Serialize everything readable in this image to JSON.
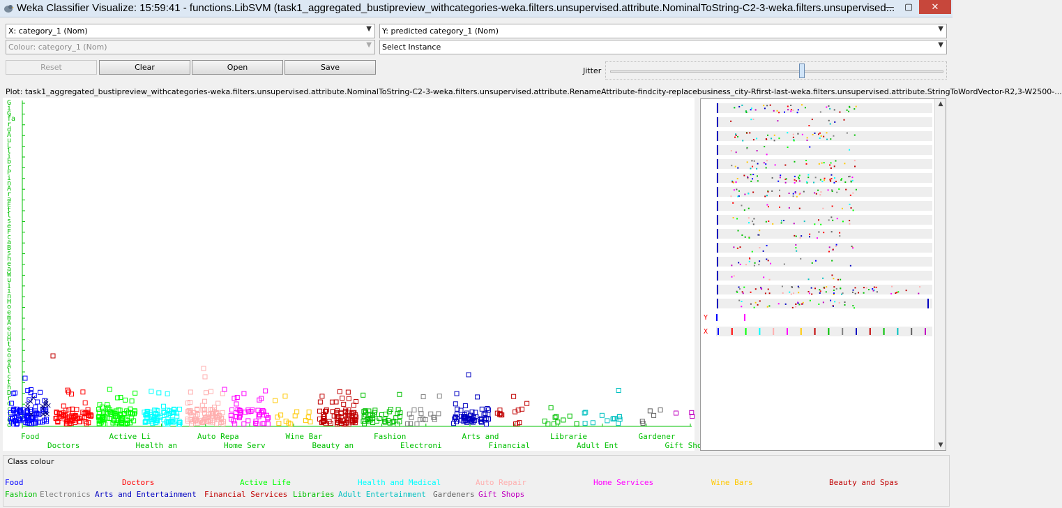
{
  "window": {
    "title": "Weka Classifier Visualize: 15:59:41 - functions.LibSVM (task1_aggregated_bustipreview_withcategories-weka.filters.unsupervised.attribute.NominalToString-C2-3-weka.filters.unsupervised...",
    "minimize": "—",
    "maximize": "▢",
    "close": "✕"
  },
  "controls": {
    "x_axis": "X: category_1 (Nom)",
    "y_axis": "Y: predicted category_1 (Nom)",
    "colour": "Colour: category_1 (Nom)",
    "select_instance": "Select Instance",
    "reset": "Reset",
    "clear": "Clear",
    "open": "Open",
    "save": "Save",
    "jitter": "Jitter",
    "jitter_value": 0.58
  },
  "plot": {
    "title": "Plot: task1_aggregated_bustipreview_withcategories-weka.filters.unsupervised.attribute.NominalToString-C2-3-weka.filters.unsupervised.attribute.RenameAttribute-findcity-replacebusiness_city-Rfirst-last-weka.filters.unsupervised.attribute.StringToWordVector-R2,3-W2500-...",
    "y_axis_label": [
      "G",
      "i",
      "G",
      "fa",
      "r",
      "d",
      "A",
      "u",
      "L",
      "l",
      "i",
      "b",
      "r",
      "P",
      "i",
      "n",
      "A",
      "r",
      "a",
      "E",
      "t",
      "l",
      "s",
      "e",
      "F",
      "c",
      "a",
      "B",
      "s",
      "h",
      "e",
      "a",
      "W",
      "u",
      "i",
      "i",
      "n",
      "H",
      "o",
      "e",
      "m",
      "A",
      "e",
      "u",
      "H",
      "t",
      "e",
      "o",
      "a",
      "A",
      "l",
      "c",
      "t",
      "h",
      "D",
      "r",
      "o",
      "c",
      "t",
      "o",
      "d"
    ],
    "x_ticks_row1": [
      "Food",
      "Active Li",
      "Auto Repa",
      "Wine Bar",
      "Fashion",
      "Arts and",
      "Librarie",
      "Gardener"
    ],
    "x_ticks_row2": [
      "Doctors",
      "Health an",
      "Home Serv",
      "Beauty an",
      "Electroni",
      "Financial",
      "Adult Ent",
      "Gift Shop"
    ]
  },
  "matrix": {
    "y_label": "Y",
    "x_label": "X"
  },
  "class_colour": {
    "label": "Class colour",
    "classes": [
      {
        "name": "Food",
        "color": "#0000ff"
      },
      {
        "name": "Doctors",
        "color": "#ff0000"
      },
      {
        "name": "Active Life",
        "color": "#00ff00"
      },
      {
        "name": "Health and Medical",
        "color": "#00ffff"
      },
      {
        "name": "Auto Repair",
        "color": "#ffafaf"
      },
      {
        "name": "Home Services",
        "color": "#ff00ff"
      },
      {
        "name": "Wine Bars",
        "color": "#ffc800"
      },
      {
        "name": "Beauty and Spas",
        "color": "#c00000"
      },
      {
        "name": "Fashion",
        "color": "#00c000"
      },
      {
        "name": "Electronics",
        "color": "#808080"
      },
      {
        "name": "Arts and Entertainment",
        "color": "#0000c0"
      },
      {
        "name": "Financial Services",
        "color": "#c00000"
      },
      {
        "name": "Libraries",
        "color": "#00c000"
      },
      {
        "name": "Adult Entertainment",
        "color": "#00c0c0"
      },
      {
        "name": "Gardeners",
        "color": "#606060"
      },
      {
        "name": "Gift Shops",
        "color": "#c000c0"
      }
    ]
  }
}
